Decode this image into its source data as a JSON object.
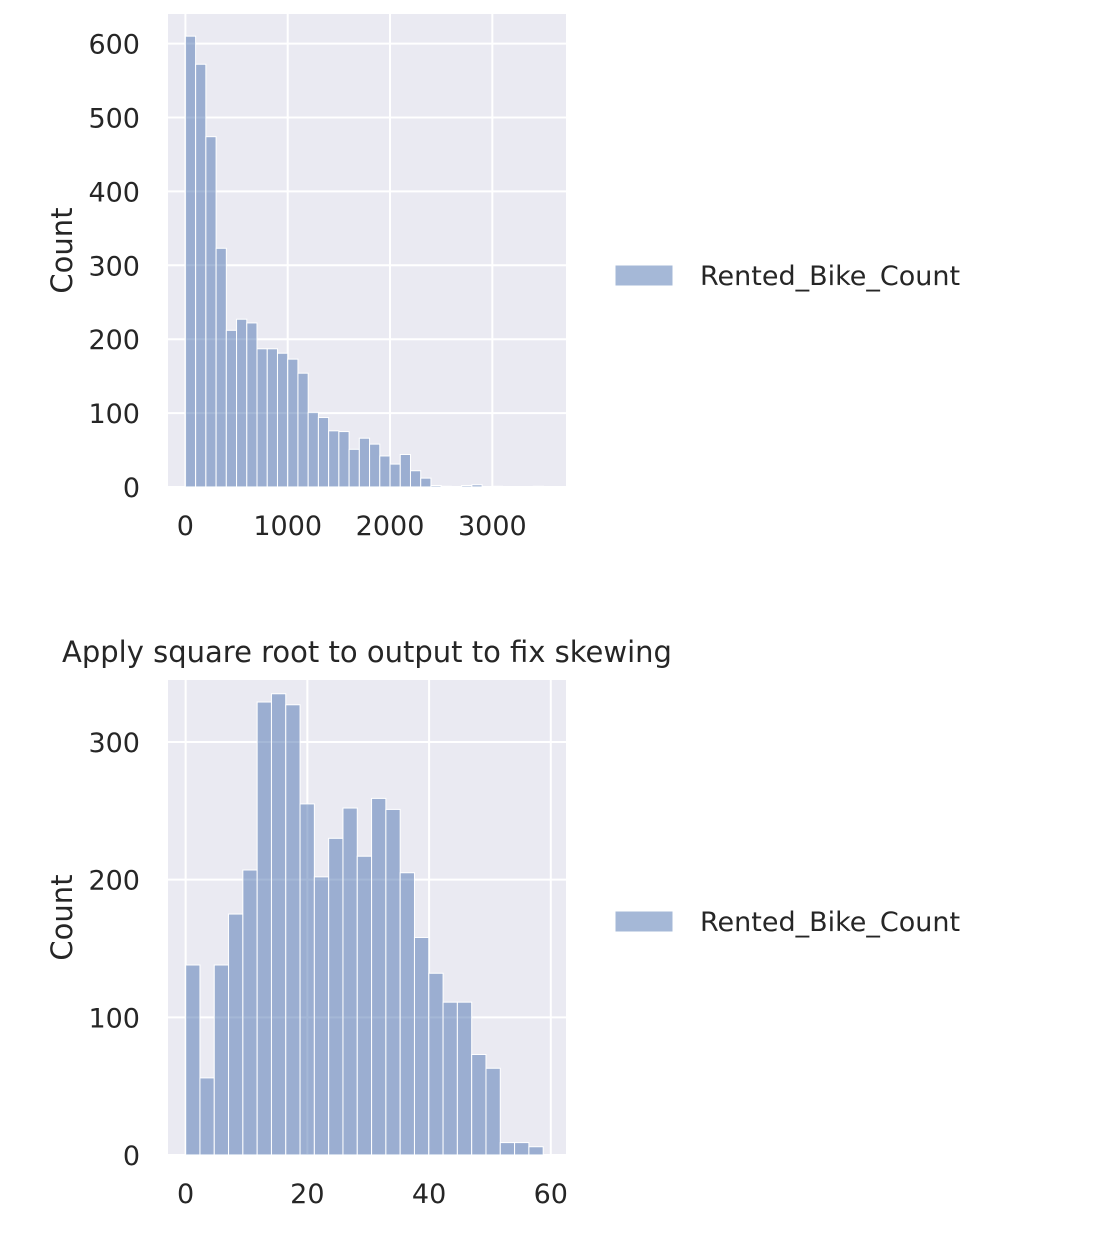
{
  "chart_data": [
    {
      "type": "bar",
      "title": "",
      "xlabel": "",
      "ylabel": "Count",
      "xlim": [
        -170,
        3720
      ],
      "ylim": [
        0,
        640
      ],
      "xticks": [
        0,
        1000,
        2000,
        3000
      ],
      "yticks": [
        0,
        100,
        200,
        300,
        400,
        500,
        600
      ],
      "bin_width": 100,
      "grid": true,
      "legend_position": "right",
      "series": [
        {
          "name": "Rented_Bike_Count",
          "color": "#4c72b0",
          "bins": [
            {
              "x0": 0,
              "count": 610
            },
            {
              "x0": 100,
              "count": 572
            },
            {
              "x0": 200,
              "count": 474
            },
            {
              "x0": 300,
              "count": 323
            },
            {
              "x0": 400,
              "count": 212
            },
            {
              "x0": 500,
              "count": 227
            },
            {
              "x0": 600,
              "count": 222
            },
            {
              "x0": 700,
              "count": 187
            },
            {
              "x0": 800,
              "count": 187
            },
            {
              "x0": 900,
              "count": 181
            },
            {
              "x0": 1000,
              "count": 173
            },
            {
              "x0": 1100,
              "count": 154
            },
            {
              "x0": 1200,
              "count": 101
            },
            {
              "x0": 1300,
              "count": 94
            },
            {
              "x0": 1400,
              "count": 76
            },
            {
              "x0": 1500,
              "count": 75
            },
            {
              "x0": 1600,
              "count": 51
            },
            {
              "x0": 1700,
              "count": 66
            },
            {
              "x0": 1800,
              "count": 58
            },
            {
              "x0": 1900,
              "count": 42
            },
            {
              "x0": 2000,
              "count": 31
            },
            {
              "x0": 2100,
              "count": 44
            },
            {
              "x0": 2200,
              "count": 22
            },
            {
              "x0": 2300,
              "count": 12
            },
            {
              "x0": 2400,
              "count": 2
            },
            {
              "x0": 2500,
              "count": 1
            },
            {
              "x0": 2600,
              "count": 0
            },
            {
              "x0": 2700,
              "count": 2
            },
            {
              "x0": 2800,
              "count": 3
            },
            {
              "x0": 2900,
              "count": 0
            },
            {
              "x0": 3000,
              "count": 1
            },
            {
              "x0": 3100,
              "count": 0
            },
            {
              "x0": 3200,
              "count": 0
            },
            {
              "x0": 3300,
              "count": 0
            },
            {
              "x0": 3400,
              "count": 1
            }
          ]
        }
      ]
    },
    {
      "type": "bar",
      "title": "Apply square root to output to fix skewing",
      "xlabel": "",
      "ylabel": "Count",
      "xlim": [
        -2.9,
        62.5
      ],
      "ylim": [
        0,
        345
      ],
      "xticks": [
        0,
        20,
        40,
        60
      ],
      "yticks": [
        0,
        100,
        200,
        300
      ],
      "bin_width": 2.35,
      "grid": true,
      "legend_position": "right",
      "series": [
        {
          "name": "Rented_Bike_Count",
          "color": "#4c72b0",
          "bins": [
            {
              "x0": 0.0,
              "count": 138
            },
            {
              "x0": 2.35,
              "count": 56
            },
            {
              "x0": 4.7,
              "count": 138
            },
            {
              "x0": 7.05,
              "count": 175
            },
            {
              "x0": 9.4,
              "count": 207
            },
            {
              "x0": 11.75,
              "count": 329
            },
            {
              "x0": 14.1,
              "count": 335
            },
            {
              "x0": 16.45,
              "count": 327
            },
            {
              "x0": 18.8,
              "count": 255
            },
            {
              "x0": 21.15,
              "count": 202
            },
            {
              "x0": 23.5,
              "count": 230
            },
            {
              "x0": 25.85,
              "count": 252
            },
            {
              "x0": 28.2,
              "count": 217
            },
            {
              "x0": 30.55,
              "count": 259
            },
            {
              "x0": 32.9,
              "count": 251
            },
            {
              "x0": 35.25,
              "count": 205
            },
            {
              "x0": 37.6,
              "count": 158
            },
            {
              "x0": 39.95,
              "count": 132
            },
            {
              "x0": 42.3,
              "count": 111
            },
            {
              "x0": 44.65,
              "count": 111
            },
            {
              "x0": 47.0,
              "count": 73
            },
            {
              "x0": 49.35,
              "count": 63
            },
            {
              "x0": 51.7,
              "count": 9
            },
            {
              "x0": 54.05,
              "count": 9
            },
            {
              "x0": 56.4,
              "count": 6
            }
          ]
        }
      ]
    }
  ]
}
